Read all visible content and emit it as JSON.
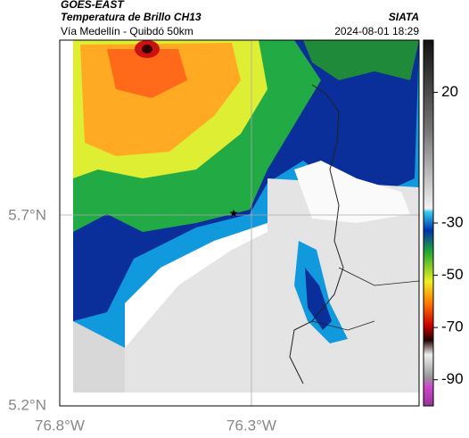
{
  "header": {
    "source": "GOES-EAST",
    "title": "Temperatura de Brillo CH13",
    "subtitle": "Vía Medellín - Quibdó 50km",
    "agency": "SIATA",
    "timestamp": "2024-08-01 18:29"
  },
  "map": {
    "lat_labels": [
      "5.7°N",
      "5.2°N"
    ],
    "lon_labels": [
      "76.8°W",
      "76.3°W"
    ]
  },
  "colorbar": {
    "range": [
      -100,
      40
    ],
    "ticks": [
      20,
      -30,
      -50,
      -70,
      -90
    ]
  }
}
